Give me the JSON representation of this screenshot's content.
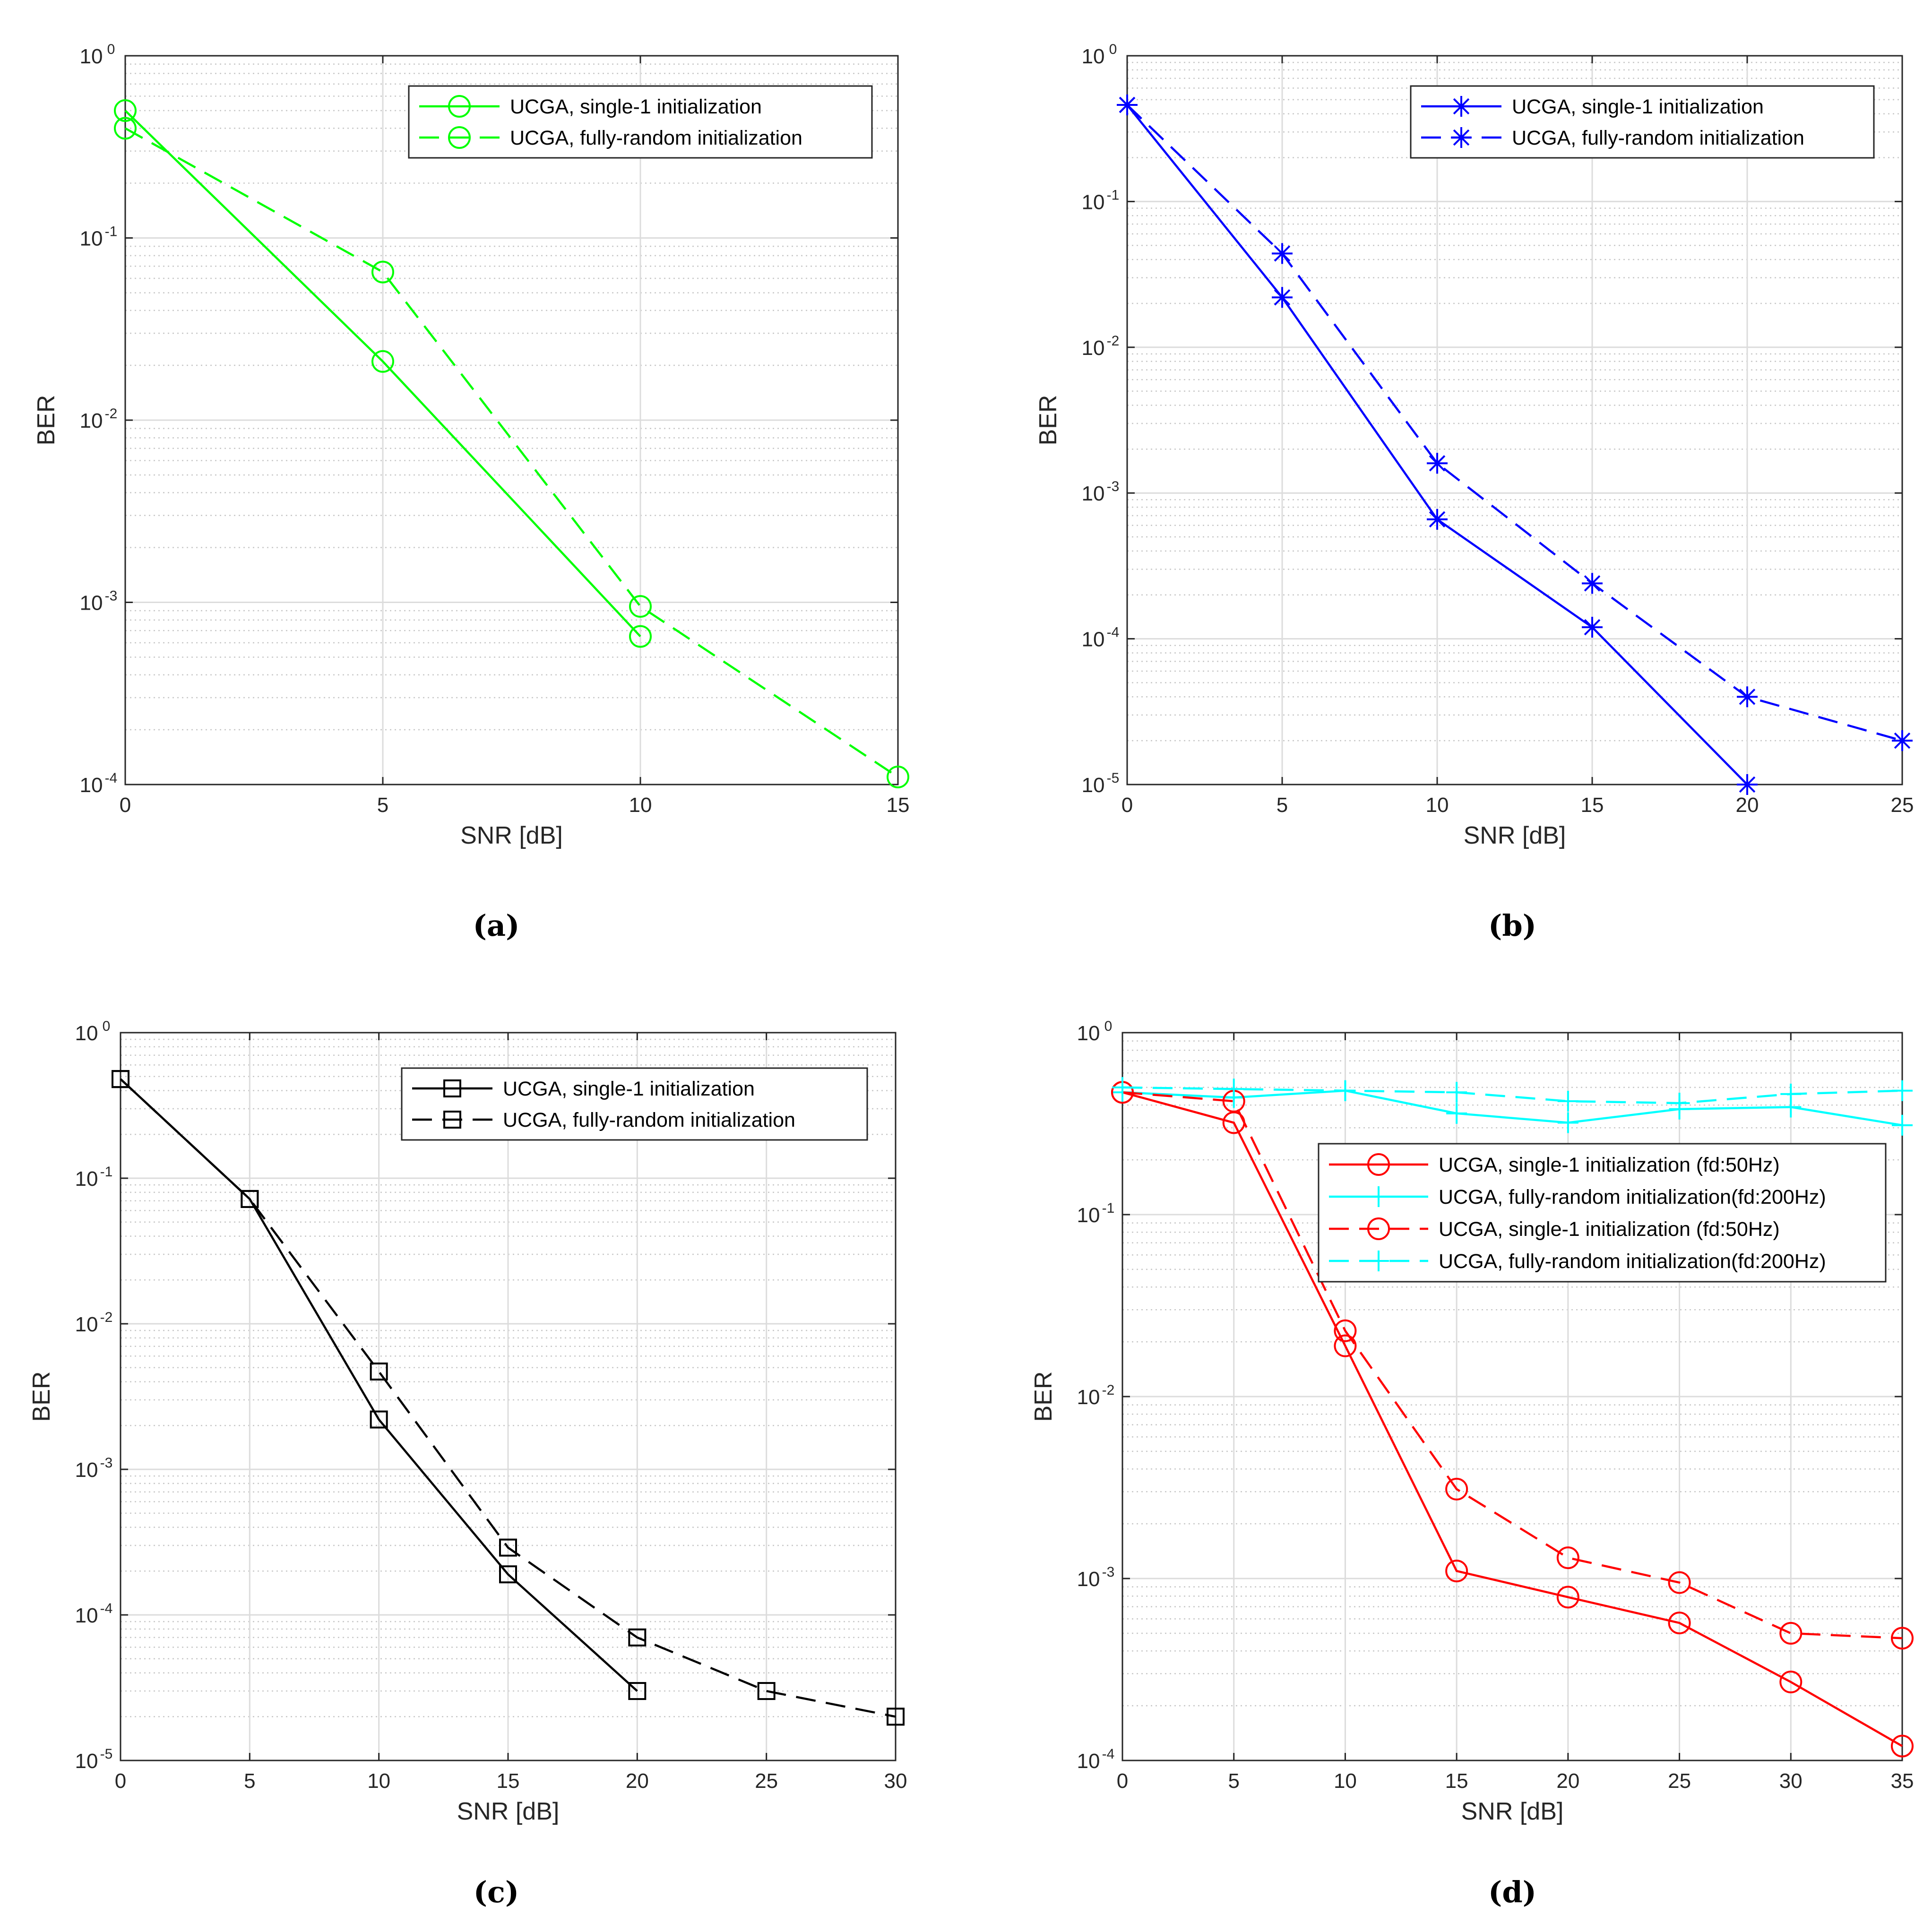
{
  "chart_data": [
    {
      "id": "a",
      "caption": "(a)",
      "type": "line",
      "xscale": "linear",
      "yscale": "log",
      "xlabel": "SNR [dB]",
      "ylabel": "BER",
      "xlim": [
        0,
        15
      ],
      "xticks": [
        0,
        5,
        10,
        15
      ],
      "ylim_exp": [
        -4,
        0
      ],
      "grid": true,
      "legend_position": "top-right",
      "series": [
        {
          "name": "UCGA, single-1 initialization",
          "color": "#00ff00",
          "dash": "solid",
          "marker": "circle",
          "x": [
            0,
            5,
            10
          ],
          "y": [
            0.5,
            0.021,
            0.00065
          ]
        },
        {
          "name": "UCGA, fully-random initialization",
          "color": "#00ff00",
          "dash": "dashed",
          "marker": "circle",
          "x": [
            0,
            5,
            10,
            15
          ],
          "y": [
            0.4,
            0.065,
            0.00095,
            0.00011
          ]
        }
      ]
    },
    {
      "id": "b",
      "caption": "(b)",
      "type": "line",
      "xscale": "linear",
      "yscale": "log",
      "xlabel": "SNR [dB]",
      "ylabel": "BER",
      "xlim": [
        0,
        25
      ],
      "xticks": [
        0,
        5,
        10,
        15,
        20,
        25
      ],
      "ylim_exp": [
        -5,
        0
      ],
      "grid": true,
      "legend_position": "top-right",
      "series": [
        {
          "name": "UCGA, single-1 initialization",
          "color": "#0000ff",
          "dash": "solid",
          "marker": "asterisk",
          "x": [
            0,
            5,
            10,
            15,
            20
          ],
          "y": [
            0.46,
            0.022,
            0.00066,
            0.00012,
            1e-05
          ]
        },
        {
          "name": "UCGA, fully-random initialization",
          "color": "#0000ff",
          "dash": "dashed",
          "marker": "asterisk",
          "x": [
            0,
            5,
            10,
            15,
            20,
            25
          ],
          "y": [
            0.46,
            0.044,
            0.0016,
            0.00024,
            4e-05,
            2e-05
          ]
        }
      ]
    },
    {
      "id": "c",
      "caption": "(c)",
      "type": "line",
      "xscale": "linear",
      "yscale": "log",
      "xlabel": "SNR [dB]",
      "ylabel": "BER",
      "xlim": [
        0,
        30
      ],
      "xticks": [
        0,
        5,
        10,
        15,
        20,
        25,
        30
      ],
      "ylim_exp": [
        -5,
        0
      ],
      "grid": true,
      "legend_position": "top-right",
      "series": [
        {
          "name": "UCGA, single-1 initialization",
          "color": "#000000",
          "dash": "solid",
          "marker": "square",
          "x": [
            0,
            5,
            10,
            15,
            20
          ],
          "y": [
            0.48,
            0.072,
            0.0022,
            0.00019,
            3e-05
          ]
        },
        {
          "name": "UCGA, fully-random initialization",
          "color": "#000000",
          "dash": "dashed",
          "marker": "square",
          "x": [
            0,
            5,
            10,
            15,
            20,
            25,
            30
          ],
          "y": [
            0.48,
            0.072,
            0.0047,
            0.00029,
            7e-05,
            3e-05,
            2e-05
          ]
        }
      ]
    },
    {
      "id": "d",
      "caption": "(d)",
      "type": "line",
      "xscale": "linear",
      "yscale": "log",
      "xlabel": "SNR [dB]",
      "ylabel": "BER",
      "xlim": [
        0,
        35
      ],
      "xticks": [
        0,
        5,
        10,
        15,
        20,
        25,
        30,
        35
      ],
      "ylim_exp": [
        -4,
        0
      ],
      "grid": true,
      "legend_position": "middle-right",
      "series": [
        {
          "name": "UCGA, single-1 initialization (fd:50Hz)",
          "color": "#ff0000",
          "dash": "solid",
          "marker": "circle",
          "x": [
            0,
            5,
            10,
            15,
            20,
            25,
            30,
            35
          ],
          "y": [
            0.47,
            0.32,
            0.019,
            0.0011,
            0.00079,
            0.00057,
            0.00027,
            0.00012
          ]
        },
        {
          "name": "UCGA, fully-random initialization(fd:200Hz)",
          "color": "#00ffff",
          "dash": "solid",
          "marker": "plus",
          "x": [
            0,
            5,
            10,
            15,
            20,
            25,
            30,
            35
          ],
          "y": [
            0.47,
            0.44,
            0.48,
            0.36,
            0.32,
            0.38,
            0.39,
            0.31
          ]
        },
        {
          "name": "UCGA, single-1 initialization (fd:50Hz)",
          "color": "#ff0000",
          "dash": "dashed",
          "marker": "circle",
          "x": [
            0,
            5,
            10,
            15,
            20,
            25,
            30,
            35
          ],
          "y": [
            0.47,
            0.42,
            0.023,
            0.0031,
            0.0013,
            0.00095,
            0.0005,
            0.00047
          ]
        },
        {
          "name": "UCGA, fully-random initialization(fd:200Hz)",
          "color": "#00ffff",
          "dash": "dashed",
          "marker": "plus",
          "x": [
            0,
            5,
            10,
            15,
            20,
            25,
            30,
            35
          ],
          "y": [
            0.5,
            0.49,
            0.48,
            0.47,
            0.42,
            0.41,
            0.46,
            0.48
          ]
        }
      ]
    }
  ]
}
